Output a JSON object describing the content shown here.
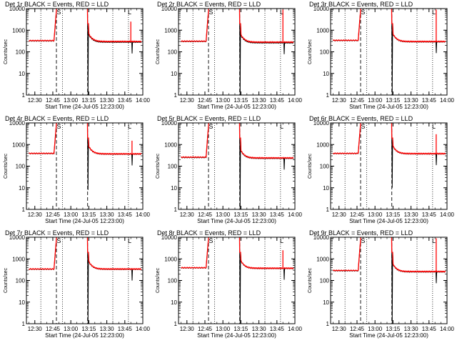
{
  "figure": {
    "time_start": "12:23:00",
    "time_end": "14:00:00",
    "x_ticks": [
      "12:30",
      "12:45",
      "13:00",
      "13:15",
      "13:30",
      "13:45",
      "14:00"
    ],
    "y_ticks": [
      1,
      10,
      100,
      1000,
      10000
    ],
    "y_tick_labels": [
      "1",
      "10",
      "100",
      "1000",
      "10000"
    ],
    "xlabel": "Start Time (24-Jul-05 12:23:00)",
    "ylabel": "Counts/sec",
    "dotted_lines": [
      "12:35:00",
      "12:53:00",
      "13:35:00",
      "13:48:00"
    ],
    "dashed_lines": [
      "12:48:00",
      "13:14:00"
    ],
    "letter_markers": [
      {
        "text": "S",
        "time": "12:50:00"
      },
      {
        "text": "L",
        "time": "13:49:00"
      }
    ],
    "colors": {
      "events": "#000000",
      "lld": "#ff0000",
      "background": "#ffffff"
    }
  },
  "chart_data": [
    {
      "type": "line",
      "title": "Det 1r BLACK = Events, RED = LLD",
      "ylim": [
        1,
        10000
      ],
      "yscale": "log",
      "series": [
        {
          "name": "Events",
          "color": "#000000",
          "baseline": 320,
          "after": 280,
          "min_dip": 1,
          "spike": null
        },
        {
          "name": "LLD",
          "color": "#ff0000",
          "baseline": 330,
          "after": 300,
          "spike": {
            "time": "13:50:00",
            "value": 2500
          }
        }
      ]
    },
    {
      "type": "line",
      "title": "Det 2r BLACK = Events, RED = LLD",
      "ylim": [
        1,
        10000
      ],
      "yscale": "log",
      "series": [
        {
          "name": "Events",
          "color": "#000000",
          "baseline": 300,
          "after": 260,
          "min_dip": 1,
          "spike": null
        },
        {
          "name": "LLD",
          "color": "#ff0000",
          "baseline": 310,
          "after": 280,
          "spike": {
            "time": "13:50:00",
            "value": 9000
          }
        }
      ]
    },
    {
      "type": "line",
      "title": "Det 3r BLACK = Events, RED = LLD",
      "ylim": [
        1,
        10000
      ],
      "yscale": "log",
      "series": [
        {
          "name": "Events",
          "color": "#000000",
          "baseline": 330,
          "after": 290,
          "min_dip": 1,
          "spike": null
        },
        {
          "name": "LLD",
          "color": "#ff0000",
          "baseline": 340,
          "after": 300,
          "spike": {
            "time": "13:51:00",
            "value": 9000
          }
        }
      ]
    },
    {
      "type": "line",
      "title": "Det 4r BLACK = Events, RED = LLD",
      "ylim": [
        1,
        10000
      ],
      "yscale": "log",
      "series": [
        {
          "name": "Events",
          "color": "#000000",
          "baseline": 380,
          "after": 360,
          "min_dip": 8,
          "spike": null
        },
        {
          "name": "LLD",
          "color": "#ff0000",
          "baseline": 390,
          "after": 370,
          "spike": {
            "time": "13:51:00",
            "value": 1500
          }
        }
      ]
    },
    {
      "type": "line",
      "title": "Det 5r BLACK = Events, RED = LLD",
      "ylim": [
        1,
        10000
      ],
      "yscale": "log",
      "series": [
        {
          "name": "Events",
          "color": "#000000",
          "baseline": 250,
          "after": 230,
          "min_dip": 1,
          "spike": null
        },
        {
          "name": "LLD",
          "color": "#ff0000",
          "baseline": 260,
          "after": 240,
          "spike": null
        }
      ]
    },
    {
      "type": "line",
      "title": "Det 6r BLACK = Events, RED = LLD",
      "ylim": [
        1,
        10000
      ],
      "yscale": "log",
      "series": [
        {
          "name": "Events",
          "color": "#000000",
          "baseline": 380,
          "after": 370,
          "min_dip": 10,
          "spike": null
        },
        {
          "name": "LLD",
          "color": "#ff0000",
          "baseline": 390,
          "after": 380,
          "spike": {
            "time": "13:51:00",
            "value": 3000
          }
        }
      ]
    },
    {
      "type": "line",
      "title": "Det 7r BLACK = Events, RED = LLD",
      "ylim": [
        1,
        10000
      ],
      "yscale": "log",
      "series": [
        {
          "name": "Events",
          "color": "#000000",
          "baseline": 330,
          "after": 330,
          "min_dip": 1,
          "spike": null
        },
        {
          "name": "LLD",
          "color": "#ff0000",
          "baseline": 340,
          "after": 340,
          "spike": null
        }
      ]
    },
    {
      "type": "line",
      "title": "Det 8r BLACK = Events, RED = LLD",
      "ylim": [
        1,
        10000
      ],
      "yscale": "log",
      "series": [
        {
          "name": "Events",
          "color": "#000000",
          "baseline": 380,
          "after": 360,
          "min_dip": 1,
          "spike": null
        },
        {
          "name": "LLD",
          "color": "#ff0000",
          "baseline": 390,
          "after": 370,
          "spike": {
            "time": "13:50:00",
            "value": 2500
          }
        }
      ]
    },
    {
      "type": "line",
      "title": "Det 9r BLACK = Events, RED = LLD",
      "ylim": [
        1,
        10000
      ],
      "yscale": "log",
      "series": [
        {
          "name": "Events",
          "color": "#000000",
          "baseline": 280,
          "after": 250,
          "min_dip": 1,
          "spike": null
        },
        {
          "name": "LLD",
          "color": "#ff0000",
          "baseline": 290,
          "after": 260,
          "spike": {
            "time": "13:51:00",
            "value": 9000
          }
        }
      ]
    }
  ]
}
